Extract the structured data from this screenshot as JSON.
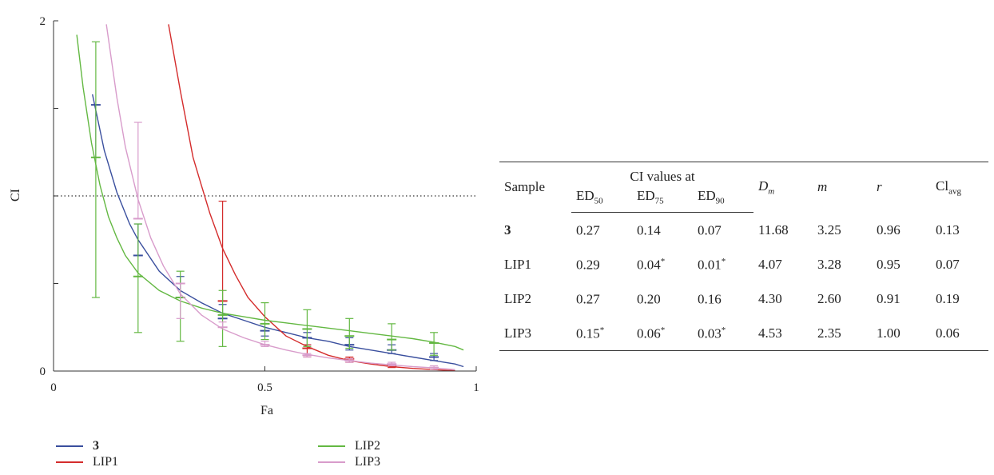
{
  "chart_data": {
    "type": "line",
    "xlabel": "Fa",
    "ylabel": "CI",
    "xlim": [
      0,
      1
    ],
    "ylim": [
      0,
      2
    ],
    "x_ticks": [
      "0",
      "0.5",
      "1"
    ],
    "y_ticks": [
      "0",
      "2"
    ],
    "reference_line": {
      "y": 1,
      "style": "dotted"
    },
    "series": [
      {
        "name": "3",
        "color": "#3a4f9e",
        "bold": true,
        "points": [
          [
            0.1,
            1.52
          ],
          [
            0.2,
            0.66
          ],
          [
            0.3,
            0.42
          ],
          [
            0.4,
            0.3
          ],
          [
            0.5,
            0.23
          ],
          [
            0.6,
            0.19
          ],
          [
            0.7,
            0.15
          ],
          [
            0.8,
            0.12
          ],
          [
            0.9,
            0.08
          ]
        ],
        "errors": [
          [
            0.1,
            1.22,
            1.52
          ],
          [
            0.2,
            0.66,
            0.84
          ],
          [
            0.3,
            0.42,
            0.54
          ],
          [
            0.4,
            0.3,
            0.38
          ],
          [
            0.5,
            0.2,
            0.27
          ],
          [
            0.6,
            0.15,
            0.22
          ],
          [
            0.7,
            0.12,
            0.19
          ],
          [
            0.8,
            0.1,
            0.15
          ],
          [
            0.9,
            0.06,
            0.1
          ]
        ],
        "curve": [
          [
            0.092,
            1.58
          ],
          [
            0.12,
            1.26
          ],
          [
            0.15,
            1.02
          ],
          [
            0.18,
            0.84
          ],
          [
            0.2,
            0.75
          ],
          [
            0.25,
            0.57
          ],
          [
            0.3,
            0.46
          ],
          [
            0.35,
            0.39
          ],
          [
            0.4,
            0.33
          ],
          [
            0.45,
            0.29
          ],
          [
            0.5,
            0.25
          ],
          [
            0.55,
            0.22
          ],
          [
            0.6,
            0.19
          ],
          [
            0.65,
            0.17
          ],
          [
            0.7,
            0.14
          ],
          [
            0.75,
            0.12
          ],
          [
            0.8,
            0.1
          ],
          [
            0.85,
            0.08
          ],
          [
            0.9,
            0.06
          ],
          [
            0.95,
            0.04
          ],
          [
            0.97,
            0.025
          ]
        ]
      },
      {
        "name": "LIP1",
        "color": "#d42c2c",
        "bold": false,
        "points": [
          [
            0.4,
            0.4
          ],
          [
            0.6,
            0.13
          ],
          [
            0.7,
            0.07
          ],
          [
            0.8,
            0.03
          ]
        ],
        "errors": [
          [
            0.4,
            0.4,
            0.97
          ],
          [
            0.6,
            0.08,
            0.15
          ],
          [
            0.7,
            0.05,
            0.08
          ],
          [
            0.8,
            0.02,
            0.04
          ]
        ],
        "curve": [
          [
            0.272,
            1.98
          ],
          [
            0.3,
            1.6
          ],
          [
            0.33,
            1.22
          ],
          [
            0.35,
            1.06
          ],
          [
            0.37,
            0.9
          ],
          [
            0.4,
            0.7
          ],
          [
            0.43,
            0.55
          ],
          [
            0.46,
            0.42
          ],
          [
            0.5,
            0.31
          ],
          [
            0.55,
            0.2
          ],
          [
            0.6,
            0.14
          ],
          [
            0.65,
            0.09
          ],
          [
            0.7,
            0.06
          ],
          [
            0.75,
            0.04
          ],
          [
            0.8,
            0.025
          ],
          [
            0.85,
            0.015
          ],
          [
            0.9,
            0.008
          ],
          [
            0.95,
            0.002
          ]
        ]
      },
      {
        "name": "LIP2",
        "color": "#63b842",
        "bold": false,
        "points": [
          [
            0.1,
            1.22
          ],
          [
            0.2,
            0.54
          ],
          [
            0.3,
            0.42
          ],
          [
            0.4,
            0.32
          ],
          [
            0.5,
            0.27
          ],
          [
            0.6,
            0.24
          ],
          [
            0.7,
            0.2
          ],
          [
            0.8,
            0.18
          ],
          [
            0.9,
            0.16
          ]
        ],
        "errors": [
          [
            0.1,
            0.42,
            1.88
          ],
          [
            0.2,
            0.22,
            0.84
          ],
          [
            0.3,
            0.17,
            0.57
          ],
          [
            0.4,
            0.14,
            0.46
          ],
          [
            0.5,
            0.18,
            0.39
          ],
          [
            0.6,
            0.14,
            0.35
          ],
          [
            0.7,
            0.13,
            0.3
          ],
          [
            0.8,
            0.12,
            0.27
          ],
          [
            0.9,
            0.09,
            0.22
          ]
        ],
        "curve": [
          [
            0.055,
            1.92
          ],
          [
            0.07,
            1.62
          ],
          [
            0.09,
            1.3
          ],
          [
            0.11,
            1.06
          ],
          [
            0.13,
            0.88
          ],
          [
            0.15,
            0.76
          ],
          [
            0.17,
            0.66
          ],
          [
            0.2,
            0.56
          ],
          [
            0.25,
            0.46
          ],
          [
            0.3,
            0.4
          ],
          [
            0.35,
            0.36
          ],
          [
            0.4,
            0.33
          ],
          [
            0.45,
            0.31
          ],
          [
            0.5,
            0.29
          ],
          [
            0.55,
            0.275
          ],
          [
            0.6,
            0.26
          ],
          [
            0.65,
            0.245
          ],
          [
            0.7,
            0.23
          ],
          [
            0.75,
            0.215
          ],
          [
            0.8,
            0.2
          ],
          [
            0.85,
            0.185
          ],
          [
            0.9,
            0.165
          ],
          [
            0.95,
            0.14
          ],
          [
            0.97,
            0.12
          ]
        ]
      },
      {
        "name": "LIP3",
        "color": "#d89ccb",
        "bold": false,
        "points": [
          [
            0.2,
            0.87
          ],
          [
            0.3,
            0.5
          ],
          [
            0.4,
            0.25
          ],
          [
            0.5,
            0.15
          ],
          [
            0.6,
            0.09
          ],
          [
            0.7,
            0.06
          ],
          [
            0.8,
            0.04
          ],
          [
            0.9,
            0.02
          ]
        ],
        "errors": [
          [
            0.2,
            0.87,
            1.42
          ],
          [
            0.3,
            0.3,
            0.5
          ],
          [
            0.4,
            0.25,
            0.28
          ],
          [
            0.5,
            0.14,
            0.17
          ],
          [
            0.6,
            0.08,
            0.1
          ],
          [
            0.7,
            0.05,
            0.07
          ],
          [
            0.8,
            0.03,
            0.05
          ],
          [
            0.9,
            0.01,
            0.03
          ]
        ],
        "curve": [
          [
            0.125,
            1.98
          ],
          [
            0.15,
            1.56
          ],
          [
            0.17,
            1.28
          ],
          [
            0.2,
            0.98
          ],
          [
            0.23,
            0.76
          ],
          [
            0.26,
            0.6
          ],
          [
            0.3,
            0.44
          ],
          [
            0.35,
            0.32
          ],
          [
            0.4,
            0.24
          ],
          [
            0.45,
            0.19
          ],
          [
            0.5,
            0.15
          ],
          [
            0.55,
            0.12
          ],
          [
            0.6,
            0.095
          ],
          [
            0.65,
            0.075
          ],
          [
            0.7,
            0.06
          ],
          [
            0.75,
            0.045
          ],
          [
            0.8,
            0.035
          ],
          [
            0.85,
            0.025
          ],
          [
            0.9,
            0.018
          ],
          [
            0.95,
            0.008
          ]
        ]
      }
    ],
    "legend": {
      "position": "bottom",
      "entries": [
        "3",
        "LIP2",
        "LIP1",
        "LIP3"
      ]
    }
  },
  "table": {
    "header": {
      "sample": "Sample",
      "ci_values_at": "CI values at",
      "ed50_base": "ED",
      "ed50_sub": "50",
      "ed75_base": "ED",
      "ed75_sub": "75",
      "ed90_base": "ED",
      "ed90_sub": "90",
      "dm_base": "D",
      "dm_sub": "m",
      "m": "m",
      "r": "r",
      "ci_base": "Cl",
      "ci_sub": "avg"
    },
    "rows": [
      {
        "sample": "3",
        "ed50": "0.27",
        "ed50_mark": "",
        "ed75": "0.14",
        "ed75_mark": "",
        "ed90": "0.07",
        "ed90_mark": "",
        "dm": "11.68",
        "m": "3.25",
        "r": "0.96",
        "ciavg": "0.13"
      },
      {
        "sample": "LIP1",
        "ed50": "0.29",
        "ed50_mark": "",
        "ed75": "0.04",
        "ed75_mark": "*",
        "ed90": "0.01",
        "ed90_mark": "*",
        "dm": "4.07",
        "m": "3.28",
        "r": "0.95",
        "ciavg": "0.07"
      },
      {
        "sample": "LIP2",
        "ed50": "0.27",
        "ed50_mark": "",
        "ed75": "0.20",
        "ed75_mark": "",
        "ed90": "0.16",
        "ed90_mark": "",
        "dm": "4.30",
        "m": "2.60",
        "r": "0.91",
        "ciavg": "0.19"
      },
      {
        "sample": "LIP3",
        "ed50": "0.15",
        "ed50_mark": "*",
        "ed75": "0.06",
        "ed75_mark": "*",
        "ed90": "0.03",
        "ed90_mark": "*",
        "dm": "4.53",
        "m": "2.35",
        "r": "1.00",
        "ciavg": "0.06"
      }
    ]
  }
}
